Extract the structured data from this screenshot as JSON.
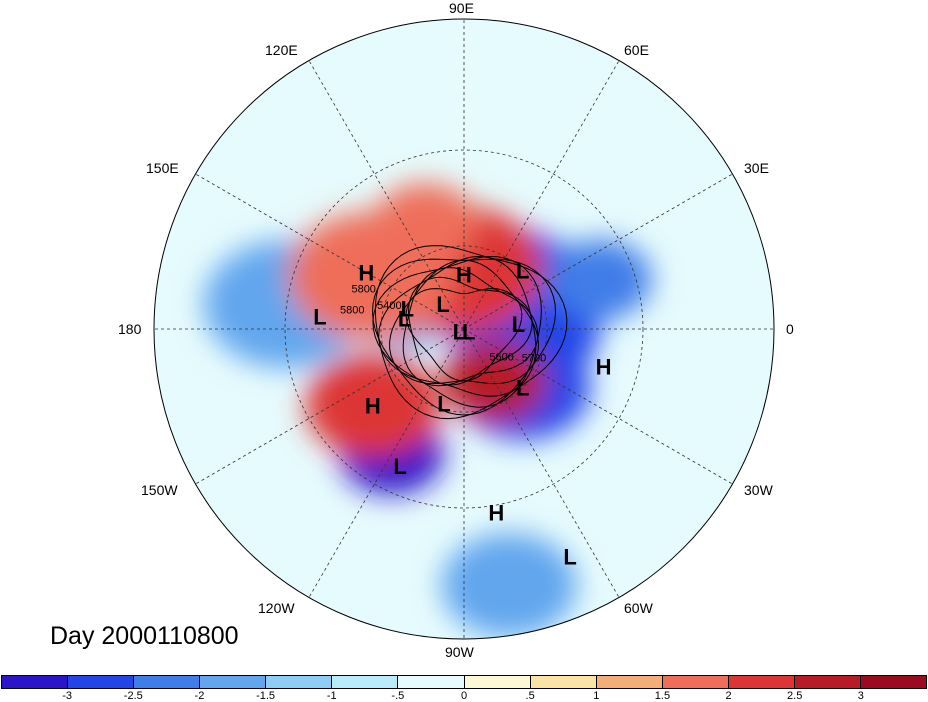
{
  "title": "Day 2000110800",
  "longitude_labels": {
    "top": "90E",
    "upper_left": "120E",
    "upper_right": "60E",
    "left_upper": "150E",
    "right_upper": "30E",
    "left": "180",
    "right": "0",
    "left_lower": "150W",
    "right_lower": "30W",
    "lower_left": "120W",
    "lower_right": "60W",
    "bottom": "90W"
  },
  "pressure_centers": [
    {
      "type": "L",
      "lon": "45E",
      "lat": 60
    },
    {
      "type": "H",
      "lon": "150E",
      "lat": 50
    },
    {
      "type": "L",
      "lon": "160E",
      "lat": 68
    },
    {
      "type": "H",
      "lon": "90E",
      "lat": 70
    },
    {
      "type": "L",
      "lon": "130E",
      "lat": 78
    },
    {
      "type": "L",
      "lon": "170E",
      "lat": 68
    },
    {
      "type": "L",
      "lon": "30W",
      "lat": 88
    },
    {
      "type": "L",
      "lon": "5E",
      "lat": 70
    },
    {
      "type": "L",
      "lon": "150W",
      "lat": 88
    },
    {
      "type": "L",
      "lon": "175E",
      "lat": 40
    },
    {
      "type": "H",
      "lon": "15W",
      "lat": 40
    },
    {
      "type": "H",
      "lon": "140W",
      "lat": 48
    },
    {
      "type": "L",
      "lon": "105W",
      "lat": 62
    },
    {
      "type": "L",
      "lon": "45W",
      "lat": 60
    },
    {
      "type": "L",
      "lon": "115W",
      "lat": 38
    },
    {
      "type": "H",
      "lon": "80W",
      "lat": 28
    },
    {
      "type": "L",
      "lon": "65W",
      "lat": 12
    }
  ],
  "contour_labels": [
    "5800",
    "5800",
    "5400",
    "5600",
    "5700"
  ],
  "colorbar": {
    "ticks": [
      "-3",
      "-2.5",
      "-2",
      "-1.5",
      "-1",
      "-.5",
      "0",
      ".5",
      "1",
      "1.5",
      "2",
      "2.5",
      "3"
    ],
    "colors": [
      "#2b14c9",
      "#2345e8",
      "#3f7de8",
      "#62a6ee",
      "#8ecdf5",
      "#b9ecfa",
      "#e6fbfd",
      "#fdf8d4",
      "#fbe3a6",
      "#f5ad78",
      "#ee6e5a",
      "#dd3535",
      "#b81a26",
      "#9c0a20"
    ],
    "anomaly_blobs": [
      {
        "lon": -120,
        "lat": 40,
        "level": 0
      },
      {
        "lon": 0,
        "lat": 65,
        "level": 1
      },
      {
        "lon": 45,
        "lat": 70,
        "level": 1
      },
      {
        "lon": 20,
        "lat": 40,
        "level": 2
      },
      {
        "lon": -45,
        "lat": 60,
        "level": 1
      },
      {
        "lon": 172,
        "lat": 30,
        "level": 3
      },
      {
        "lon": 162,
        "lat": 66,
        "level": 3
      },
      {
        "lon": -80,
        "lat": 10,
        "level": 3
      },
      {
        "lon": 95,
        "lat": 68,
        "level": 11
      },
      {
        "lon": -60,
        "lat": 68,
        "level": 12
      },
      {
        "lon": -140,
        "lat": 48,
        "level": 11
      },
      {
        "lon": 150,
        "lat": 52,
        "level": 10
      },
      {
        "lon": 110,
        "lat": 50,
        "level": 10
      }
    ]
  }
}
